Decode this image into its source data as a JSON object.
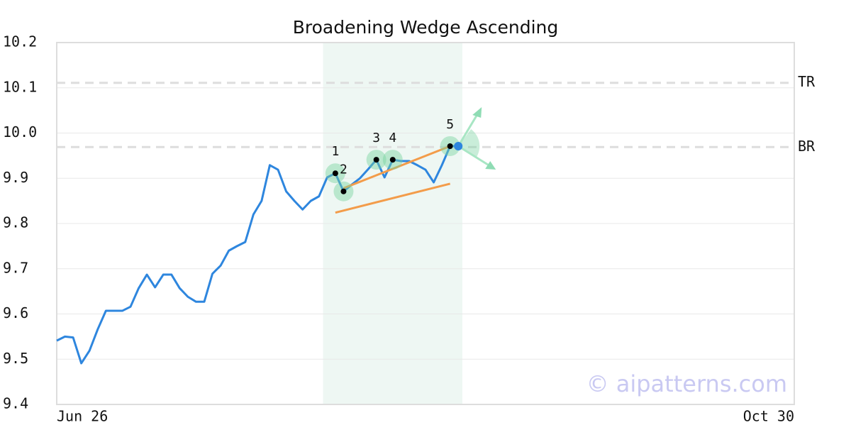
{
  "chart_data": {
    "type": "line",
    "title": "Broadening Wedge Ascending",
    "watermark": "© aipatterns.com",
    "categories": [
      "Jun 26",
      null,
      null,
      null,
      null,
      null,
      null,
      null,
      null,
      null,
      null,
      null,
      null,
      null,
      null,
      null,
      null,
      null,
      null,
      null,
      null,
      null,
      null,
      null,
      null,
      null,
      null,
      null,
      null,
      null,
      null,
      null,
      null,
      null,
      null,
      null,
      null,
      null,
      null,
      null,
      null,
      null,
      null,
      null,
      null,
      null,
      null,
      null,
      null,
      null,
      null,
      null,
      null,
      null,
      null,
      null,
      null,
      null,
      null,
      null,
      null,
      null,
      null,
      null,
      null,
      null,
      null,
      null,
      null,
      null,
      null,
      null,
      null,
      null,
      null,
      null,
      null,
      null,
      null,
      null,
      null,
      null,
      null,
      null,
      null,
      null,
      null,
      null,
      null,
      null,
      "Oct 30"
    ],
    "values": [
      9.541,
      9.55,
      9.548,
      9.491,
      9.519,
      9.566,
      9.607,
      9.607,
      9.607,
      9.616,
      9.657,
      9.687,
      9.659,
      9.687,
      9.687,
      9.657,
      9.638,
      9.627,
      9.627,
      9.689,
      9.707,
      9.74,
      9.75,
      9.759,
      9.82,
      9.85,
      9.929,
      9.919,
      9.871,
      9.85,
      9.831,
      9.85,
      9.86,
      9.902,
      9.911,
      9.871,
      9.886,
      9.9,
      9.92,
      9.941,
      9.902,
      9.941,
      9.938,
      9.938,
      9.929,
      9.919,
      9.891,
      9.929,
      9.971,
      9.971,
      null,
      null,
      null,
      null,
      null,
      null,
      null,
      null,
      null,
      null,
      null,
      null,
      null,
      null,
      null,
      null,
      null,
      null,
      null,
      null,
      null,
      null,
      null,
      null,
      null,
      null,
      null,
      null,
      null,
      null,
      null,
      null,
      null,
      null,
      null,
      null,
      null,
      null,
      null,
      null,
      null
    ],
    "color": "#2e86de",
    "ylim": [
      9.4,
      10.2
    ],
    "yticks": [
      9.4,
      9.5,
      9.6,
      9.7,
      9.8,
      9.9,
      {
        "value": 10,
        "label": "10.0"
      },
      10.1,
      10.2
    ],
    "grid": true,
    "levels": [
      {
        "name": "TR",
        "value": 10.111
      },
      {
        "name": "BR",
        "value": 9.969
      }
    ],
    "pattern_points": [
      {
        "label": "1",
        "index": 34,
        "value": 9.911
      },
      {
        "label": "2",
        "index": 35,
        "value": 9.871
      },
      {
        "label": "3",
        "index": 39,
        "value": 9.941
      },
      {
        "label": "4",
        "index": 41,
        "value": 9.941
      },
      {
        "label": "5",
        "index": 48,
        "value": 9.971
      }
    ],
    "trendlines": [
      {
        "x": [
          35,
          48
        ],
        "values": [
          9.878,
          9.971
        ]
      },
      {
        "x": [
          34,
          48
        ],
        "values": [
          9.824,
          9.888
        ]
      }
    ],
    "trend_color": "#f39c4a"
  }
}
